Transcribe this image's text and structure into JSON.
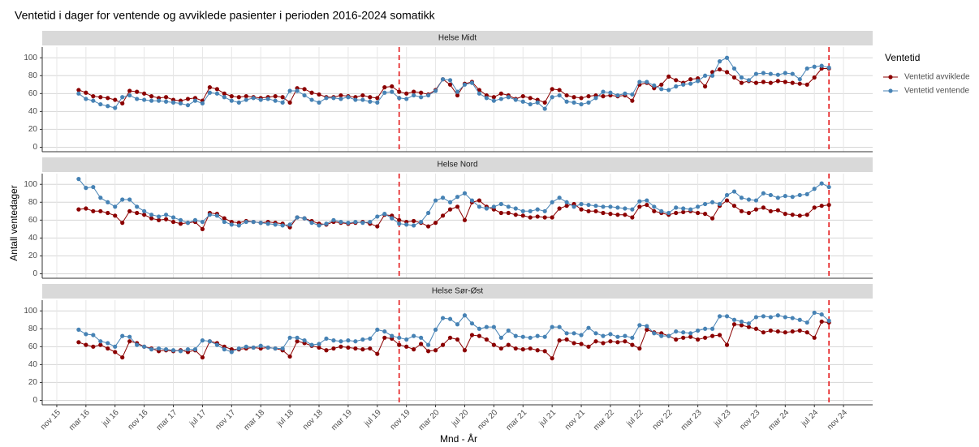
{
  "title": "Ventetid i dager for ventende og avviklede pasienter i perioden 2016-2024 somatikk",
  "x_label": "Mnd - År",
  "y_label": "Antall ventedager",
  "legend_title": "Ventetid",
  "vlines": [
    "2019-10",
    "2024-09"
  ],
  "vline_color": "#e41a1c",
  "chart_data": [
    {
      "type": "line",
      "title": "Helse Midt",
      "x_start": "2016-02",
      "xlim": [
        "2015-09",
        "2025-03"
      ],
      "ylim": [
        -5,
        112
      ],
      "yticks": [
        0,
        20,
        40,
        60,
        80,
        100
      ],
      "grid": true,
      "series": [
        {
          "name": "Ventetid avviklede",
          "color": "#8b0000",
          "values": [
            64,
            61,
            57,
            56,
            55,
            53,
            49,
            63,
            62,
            60,
            57,
            55,
            56,
            53,
            52,
            54,
            55,
            52,
            67,
            65,
            60,
            57,
            56,
            57,
            56,
            55,
            56,
            57,
            56,
            50,
            66,
            65,
            61,
            59,
            56,
            56,
            58,
            57,
            56,
            58,
            56,
            55,
            67,
            68,
            62,
            60,
            62,
            61,
            59,
            64,
            76,
            70,
            58,
            71,
            73,
            64,
            58,
            56,
            60,
            58,
            54,
            57,
            55,
            53,
            50,
            65,
            64,
            58,
            56,
            55,
            57,
            58,
            57,
            58,
            57,
            58,
            52,
            70,
            72,
            66,
            70,
            79,
            75,
            72,
            76,
            77,
            68,
            84,
            87,
            84,
            78,
            72,
            74,
            72,
            73,
            72,
            74,
            73,
            72,
            71,
            70,
            78,
            88,
            88
          ]
        },
        {
          "name": "Ventetid ventende",
          "color": "#4682b4",
          "values": [
            60,
            54,
            52,
            48,
            46,
            44,
            56,
            58,
            54,
            53,
            52,
            52,
            51,
            50,
            49,
            47,
            52,
            49,
            61,
            60,
            56,
            52,
            50,
            53,
            55,
            53,
            54,
            52,
            50,
            63,
            63,
            58,
            53,
            50,
            55,
            55,
            54,
            56,
            53,
            53,
            51,
            50,
            61,
            62,
            55,
            54,
            58,
            56,
            58,
            63,
            76,
            75,
            62,
            70,
            72,
            60,
            55,
            52,
            54,
            56,
            53,
            51,
            48,
            50,
            43,
            56,
            58,
            51,
            50,
            48,
            50,
            55,
            62,
            61,
            58,
            60,
            59,
            73,
            73,
            69,
            65,
            64,
            68,
            70,
            71,
            74,
            80,
            80,
            96,
            100,
            88,
            78,
            75,
            82,
            83,
            82,
            81,
            83,
            82,
            76,
            88,
            90,
            91,
            89
          ]
        }
      ]
    },
    {
      "type": "line",
      "title": "Helse Nord",
      "x_start": "2016-02",
      "xlim": [
        "2015-09",
        "2025-03"
      ],
      "ylim": [
        -5,
        112
      ],
      "yticks": [
        0,
        20,
        40,
        60,
        80,
        100
      ],
      "grid": true,
      "series": [
        {
          "name": "Ventetid avviklede",
          "color": "#8b0000",
          "values": [
            72,
            73,
            70,
            70,
            68,
            65,
            57,
            70,
            68,
            66,
            62,
            60,
            61,
            58,
            56,
            57,
            58,
            50,
            68,
            67,
            62,
            58,
            57,
            59,
            58,
            57,
            58,
            57,
            56,
            52,
            63,
            62,
            59,
            56,
            55,
            58,
            57,
            56,
            57,
            58,
            56,
            53,
            66,
            65,
            60,
            58,
            59,
            57,
            53,
            57,
            65,
            72,
            75,
            60,
            80,
            82,
            75,
            72,
            68,
            68,
            66,
            65,
            63,
            64,
            63,
            63,
            73,
            76,
            78,
            72,
            70,
            70,
            68,
            67,
            66,
            66,
            63,
            75,
            77,
            70,
            68,
            66,
            68,
            69,
            70,
            68,
            67,
            62,
            76,
            82,
            76,
            70,
            68,
            72,
            74,
            70,
            71,
            67,
            66,
            65,
            66,
            74,
            76,
            77
          ]
        },
        {
          "name": "Ventetid ventende",
          "color": "#4682b4",
          "values": [
            106,
            96,
            97,
            85,
            80,
            75,
            83,
            83,
            75,
            70,
            66,
            64,
            66,
            63,
            60,
            57,
            60,
            58,
            66,
            65,
            58,
            55,
            54,
            58,
            58,
            57,
            56,
            55,
            54,
            55,
            63,
            62,
            57,
            54,
            56,
            60,
            58,
            57,
            58,
            57,
            58,
            64,
            67,
            62,
            56,
            55,
            54,
            58,
            68,
            82,
            85,
            80,
            86,
            90,
            82,
            75,
            73,
            75,
            78,
            75,
            73,
            70,
            70,
            72,
            70,
            80,
            85,
            80,
            75,
            78,
            77,
            76,
            75,
            75,
            74,
            73,
            72,
            81,
            82,
            75,
            70,
            68,
            74,
            73,
            72,
            75,
            78,
            80,
            78,
            88,
            92,
            85,
            83,
            82,
            90,
            88,
            85,
            87,
            86,
            88,
            89,
            95,
            101,
            97
          ]
        }
      ]
    },
    {
      "type": "line",
      "title": "Helse Sør-Øst",
      "x_start": "2016-02",
      "xlim": [
        "2015-09",
        "2025-03"
      ],
      "ylim": [
        -5,
        112
      ],
      "yticks": [
        0,
        20,
        40,
        60,
        80,
        100
      ],
      "grid": true,
      "xticks": [
        {
          "value": "2015-11",
          "label": "nov 15"
        },
        {
          "value": "2016-03",
          "label": "mar 16"
        },
        {
          "value": "2016-07",
          "label": "jul 16"
        },
        {
          "value": "2016-11",
          "label": "nov 16"
        },
        {
          "value": "2017-03",
          "label": "mar 17"
        },
        {
          "value": "2017-07",
          "label": "jul 17"
        },
        {
          "value": "2017-11",
          "label": "nov 17"
        },
        {
          "value": "2018-03",
          "label": "mar 18"
        },
        {
          "value": "2018-07",
          "label": "jul 18"
        },
        {
          "value": "2018-11",
          "label": "nov 18"
        },
        {
          "value": "2019-03",
          "label": "mar 19"
        },
        {
          "value": "2019-07",
          "label": "jul 19"
        },
        {
          "value": "2019-11",
          "label": "nov 19"
        },
        {
          "value": "2020-03",
          "label": "mar 20"
        },
        {
          "value": "2020-07",
          "label": "jul 20"
        },
        {
          "value": "2020-11",
          "label": "nov 20"
        },
        {
          "value": "2021-03",
          "label": "mar 21"
        },
        {
          "value": "2021-07",
          "label": "jul 21"
        },
        {
          "value": "2021-11",
          "label": "nov 21"
        },
        {
          "value": "2022-03",
          "label": "mar 22"
        },
        {
          "value": "2022-07",
          "label": "jul 22"
        },
        {
          "value": "2022-11",
          "label": "nov 22"
        },
        {
          "value": "2023-03",
          "label": "mar 23"
        },
        {
          "value": "2023-07",
          "label": "jul 23"
        },
        {
          "value": "2023-11",
          "label": "nov 23"
        },
        {
          "value": "2024-03",
          "label": "mar 24"
        },
        {
          "value": "2024-07",
          "label": "jul 24"
        },
        {
          "value": "2024-11",
          "label": "nov 24"
        }
      ],
      "series": [
        {
          "name": "Ventetid avviklede",
          "color": "#8b0000",
          "values": [
            65,
            62,
            60,
            62,
            58,
            54,
            48,
            66,
            64,
            60,
            58,
            55,
            56,
            55,
            56,
            54,
            56,
            48,
            66,
            64,
            60,
            57,
            57,
            58,
            59,
            58,
            59,
            58,
            56,
            49,
            66,
            64,
            61,
            59,
            56,
            58,
            60,
            59,
            58,
            57,
            58,
            52,
            70,
            69,
            62,
            60,
            57,
            63,
            55,
            56,
            62,
            70,
            68,
            56,
            73,
            72,
            68,
            62,
            58,
            62,
            58,
            57,
            58,
            56,
            55,
            47,
            67,
            68,
            64,
            63,
            60,
            66,
            64,
            66,
            65,
            66,
            62,
            58,
            79,
            76,
            75,
            72,
            68,
            70,
            71,
            68,
            70,
            72,
            73,
            62,
            85,
            84,
            82,
            80,
            76,
            78,
            77,
            76,
            77,
            78,
            76,
            70,
            88,
            87
          ]
        },
        {
          "name": "Ventetid ventende",
          "color": "#4682b4",
          "values": [
            79,
            74,
            73,
            66,
            64,
            60,
            72,
            71,
            62,
            60,
            57,
            58,
            57,
            56,
            55,
            57,
            57,
            67,
            66,
            62,
            57,
            54,
            58,
            60,
            59,
            61,
            59,
            58,
            58,
            70,
            70,
            67,
            62,
            63,
            69,
            67,
            66,
            67,
            66,
            68,
            69,
            79,
            77,
            72,
            70,
            68,
            72,
            70,
            62,
            79,
            92,
            91,
            85,
            95,
            86,
            80,
            82,
            82,
            70,
            78,
            72,
            71,
            70,
            72,
            71,
            82,
            82,
            75,
            75,
            73,
            81,
            75,
            72,
            74,
            71,
            72,
            70,
            84,
            83,
            75,
            72,
            72,
            77,
            76,
            75,
            78,
            80,
            80,
            94,
            94,
            90,
            88,
            86,
            93,
            94,
            93,
            95,
            93,
            92,
            90,
            87,
            98,
            96,
            89
          ]
        }
      ]
    }
  ]
}
